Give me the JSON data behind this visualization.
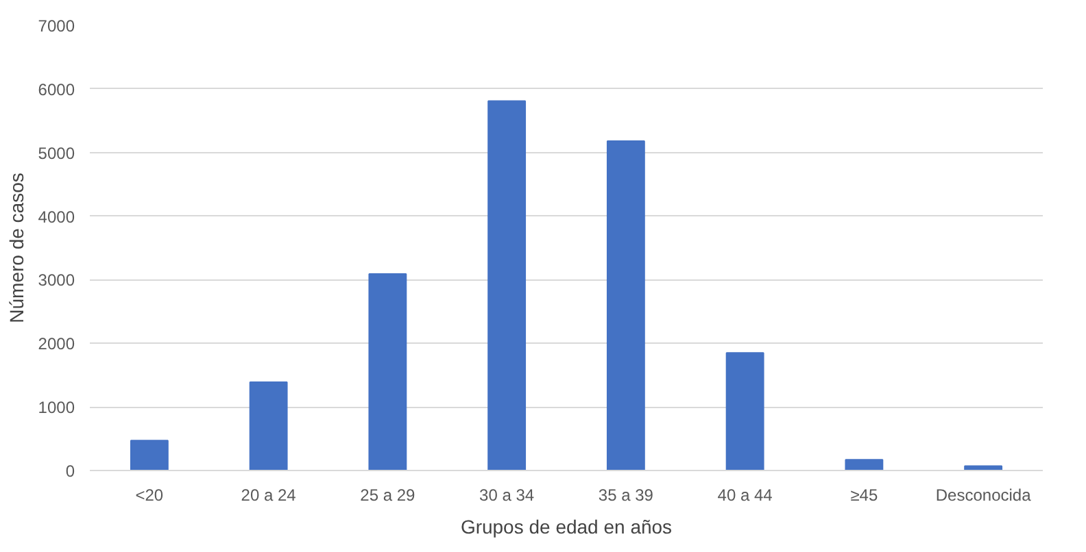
{
  "chart_data": {
    "type": "bar",
    "xlabel": "Grupos de edad en años",
    "ylabel": "Número de casos",
    "categories": [
      "<20",
      "20 a 24",
      "25 a 29",
      "30 a 34",
      "35 a 39",
      "40 a 44",
      "≥45",
      "Desconocida"
    ],
    "values": [
      470,
      1390,
      3090,
      5810,
      5180,
      1850,
      170,
      70
    ],
    "color": "#4472c4",
    "ylim": [
      0,
      7000
    ],
    "yticks": [
      0,
      1000,
      2000,
      3000,
      4000,
      5000,
      6000,
      7000
    ],
    "grid": "y"
  }
}
